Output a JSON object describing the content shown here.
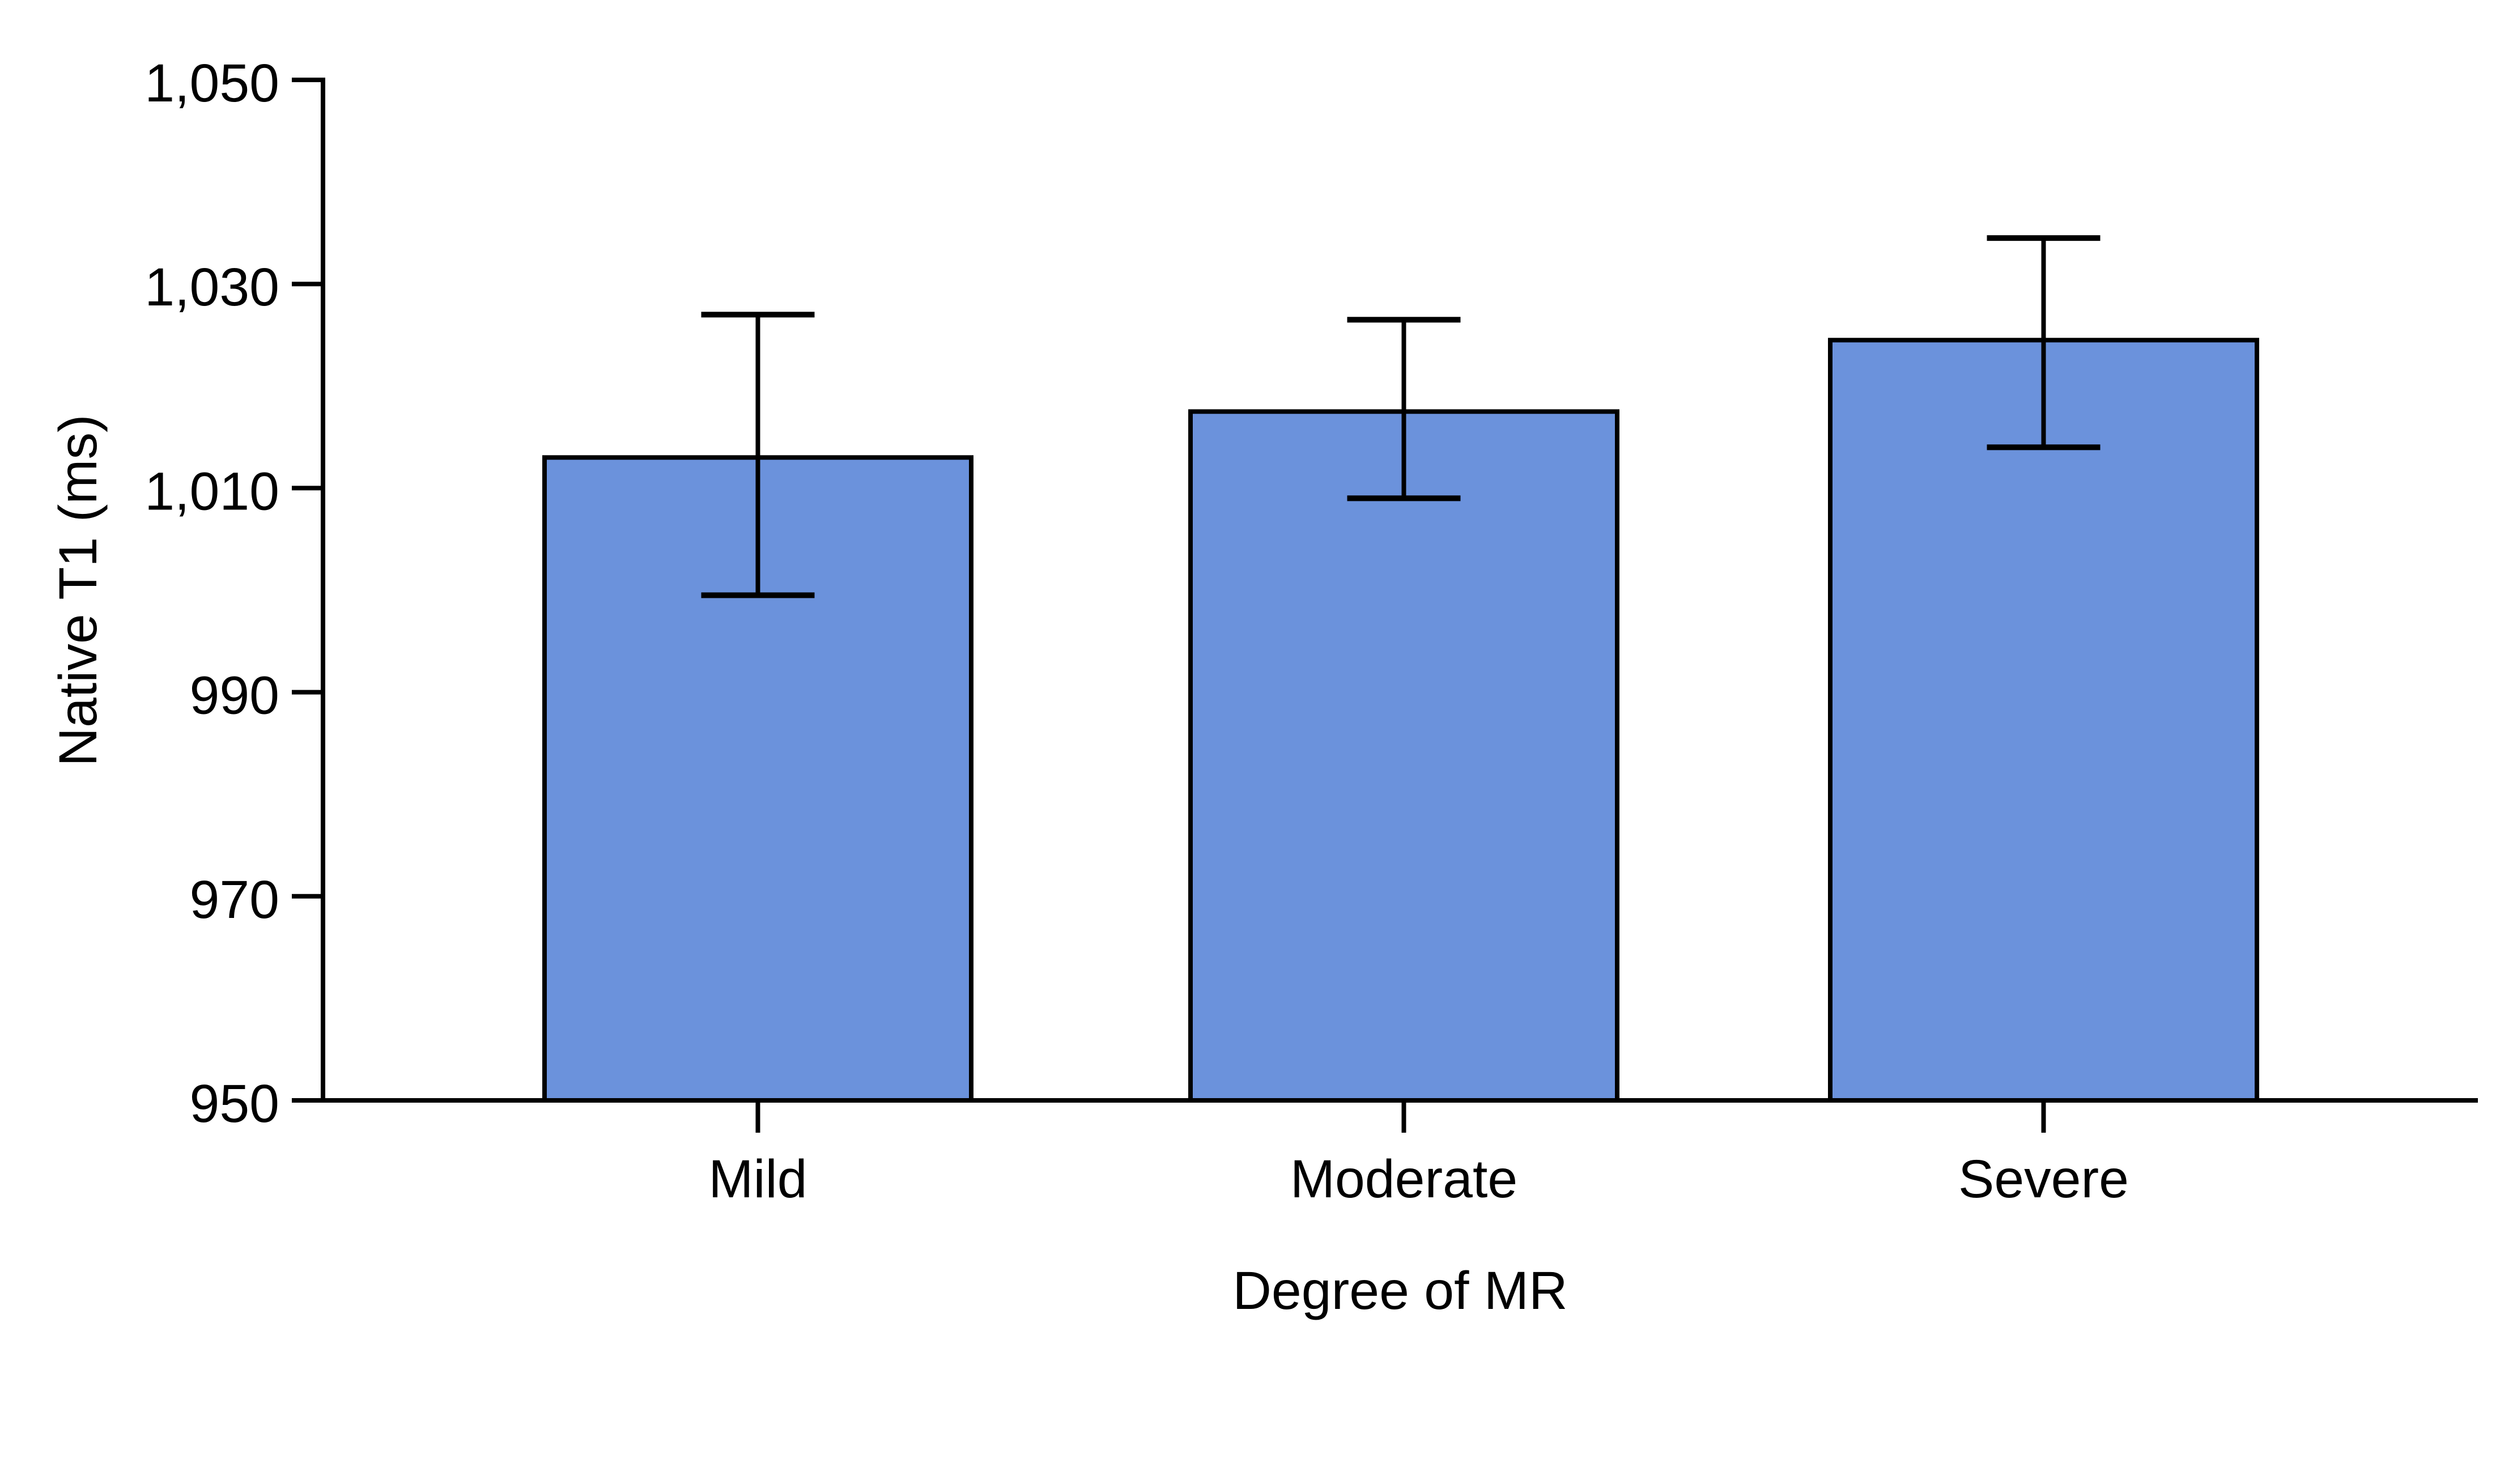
{
  "chart_data": {
    "type": "bar",
    "title": "",
    "categories": [
      "Mild",
      "Moderate",
      "Severe"
    ],
    "values": [
      1013,
      1017.5,
      1024.5
    ],
    "error_bars": {
      "lower": [
        999.5,
        1009,
        1014
      ],
      "upper": [
        1027,
        1026.5,
        1034.5
      ]
    },
    "xlabel": "Degree of MR",
    "ylabel": "Native T1 (ms)",
    "ylim": [
      950,
      1050
    ],
    "yticks": [
      950,
      970,
      990,
      1010,
      1030,
      1050
    ],
    "ytick_labels": [
      "950",
      "970",
      "990",
      "1,010",
      "1,030",
      "1,050"
    ],
    "legend": "none",
    "grid": false,
    "bar_fill_color": "#6B92DC",
    "bar_edge_color": "#000000",
    "axis_color": "#000000",
    "background_color": "#FFFFFF"
  }
}
